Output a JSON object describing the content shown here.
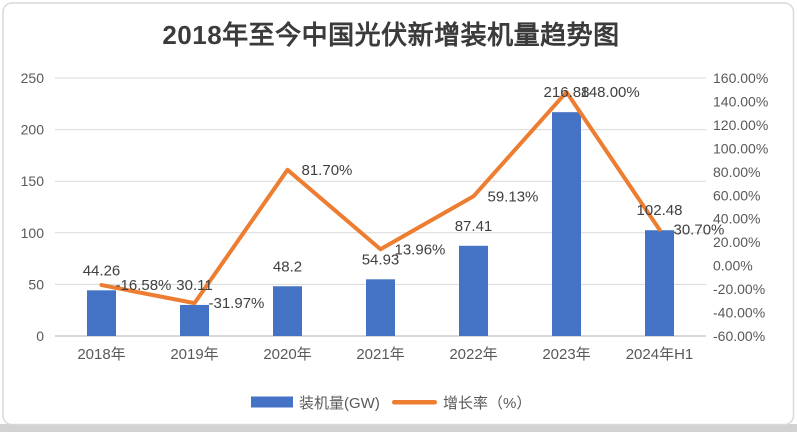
{
  "title": "2018年至今中国光伏新增装机量趋势图",
  "chart_data": {
    "type": "bar+line combo",
    "title": "2018年至今中国光伏新增装机量趋势图",
    "categories": [
      "2018年",
      "2019年",
      "2020年",
      "2021年",
      "2022年",
      "2023年",
      "2024年H1"
    ],
    "series": [
      {
        "name": "装机量(GW)",
        "type": "bar",
        "axis": "left",
        "color": "#4472C4",
        "values": [
          44.26,
          30.11,
          48.2,
          54.93,
          87.41,
          216.88,
          102.48
        ],
        "labels": [
          "44.26",
          "30.11",
          "48.2",
          "54.93",
          "87.41",
          "216.88",
          "102.48"
        ]
      },
      {
        "name": "增长率（%）",
        "type": "line",
        "axis": "right",
        "color": "#ED7D31",
        "values": [
          -16.58,
          -31.97,
          81.7,
          13.96,
          59.13,
          148.0,
          30.7
        ],
        "labels": [
          "-16.58%",
          "-31.97%",
          "81.70%",
          "13.96%",
          "59.13%",
          "148.00%",
          "30.70%"
        ]
      }
    ],
    "left_axis": {
      "min": 0,
      "max": 250,
      "step": 50,
      "ticks": [
        "0",
        "50",
        "100",
        "150",
        "200",
        "250"
      ]
    },
    "right_axis": {
      "min": -60,
      "max": 160,
      "step": 20,
      "ticks": [
        "160.00%",
        "140.00%",
        "120.00%",
        "100.00%",
        "80.00%",
        "60.00%",
        "40.00%",
        "20.00%",
        "0.00%",
        "-20.00%",
        "-40.00%",
        "-60.00%"
      ]
    },
    "grid": true,
    "legend_position": "bottom",
    "legend": [
      {
        "label": "装机量(GW)",
        "swatch": "bar",
        "color": "#4472C4"
      },
      {
        "label": "增长率（%）",
        "swatch": "line",
        "color": "#ED7D31"
      }
    ]
  },
  "colors": {
    "bar": "#4472C4",
    "line": "#ED7D31",
    "grid": "#D9D9D9",
    "axis_line": "#D9D9D9",
    "axis_text": "#595959",
    "label_text": "#404040",
    "title_text": "#3B3B3B",
    "frame_border": "#D9D9D9",
    "page_edge": "#D2D2D2",
    "background": "#FFFFFF"
  }
}
